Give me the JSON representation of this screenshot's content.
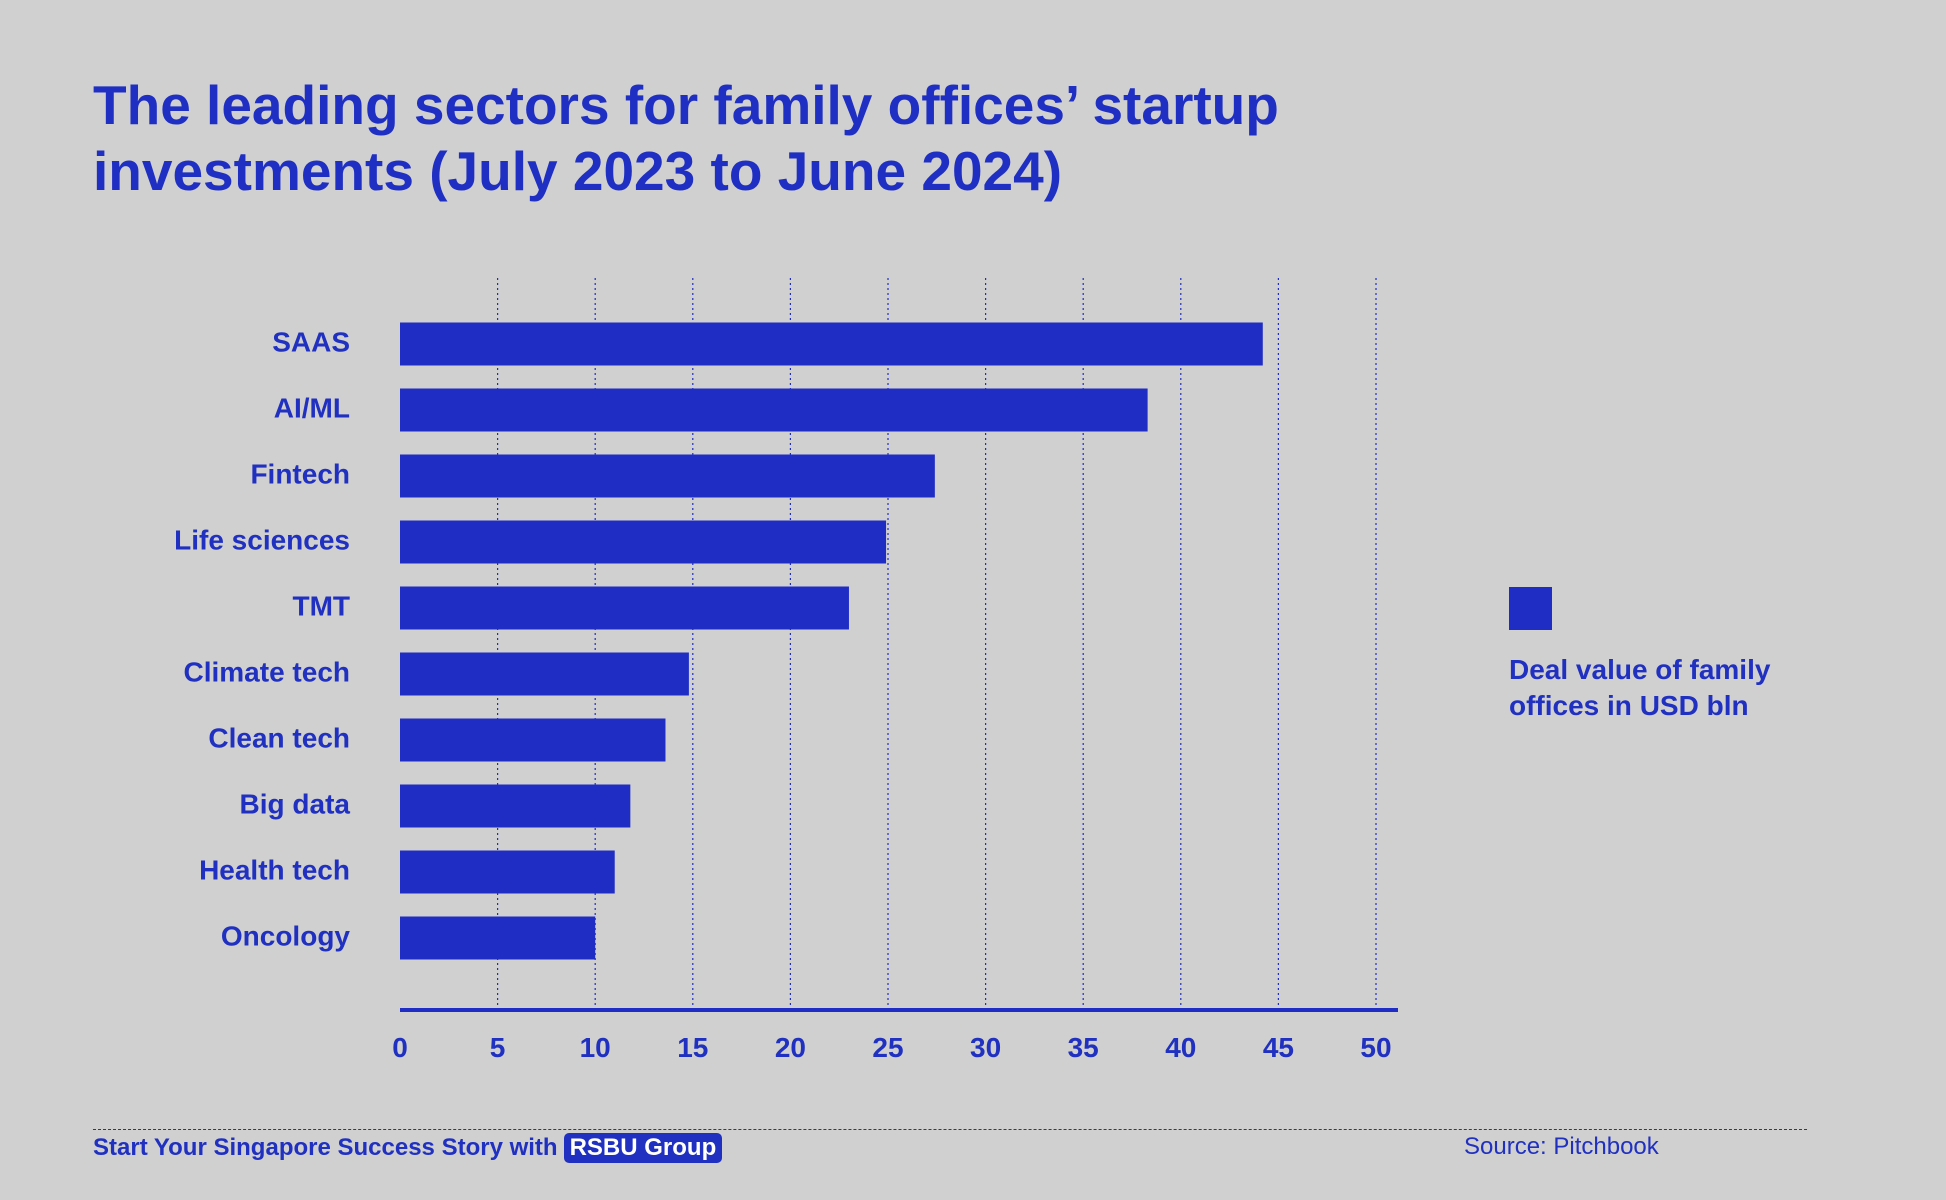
{
  "chart_data": {
    "type": "bar",
    "orientation": "horizontal",
    "title": "The leading sectors for family offices’ startup investments (July 2023 to June 2024)",
    "categories": [
      "SAAS",
      "AI/ML",
      "Fintech",
      "Life sciences",
      "TMT",
      "Climate tech",
      "Clean tech",
      "Big data",
      "Health tech",
      "Oncology"
    ],
    "series": [
      {
        "name": "Deal value of family offices in USD bln",
        "values": [
          44.2,
          38.3,
          27.4,
          24.9,
          23.0,
          14.8,
          13.6,
          11.8,
          11.0,
          10.0
        ]
      }
    ],
    "xlim": [
      0,
      50
    ],
    "xticks": [
      0,
      5,
      10,
      15,
      20,
      25,
      30,
      35,
      40,
      45,
      50
    ],
    "grid": true,
    "legend_position": "right",
    "bar_color": "#1f2dc4"
  },
  "footer": {
    "tagline": "Start Your Singapore Success Story with",
    "brand": "RSBU Group",
    "source": "Source: Pitchbook"
  },
  "colors": {
    "background": "#d0d0d0",
    "accent": "#2030c0"
  }
}
